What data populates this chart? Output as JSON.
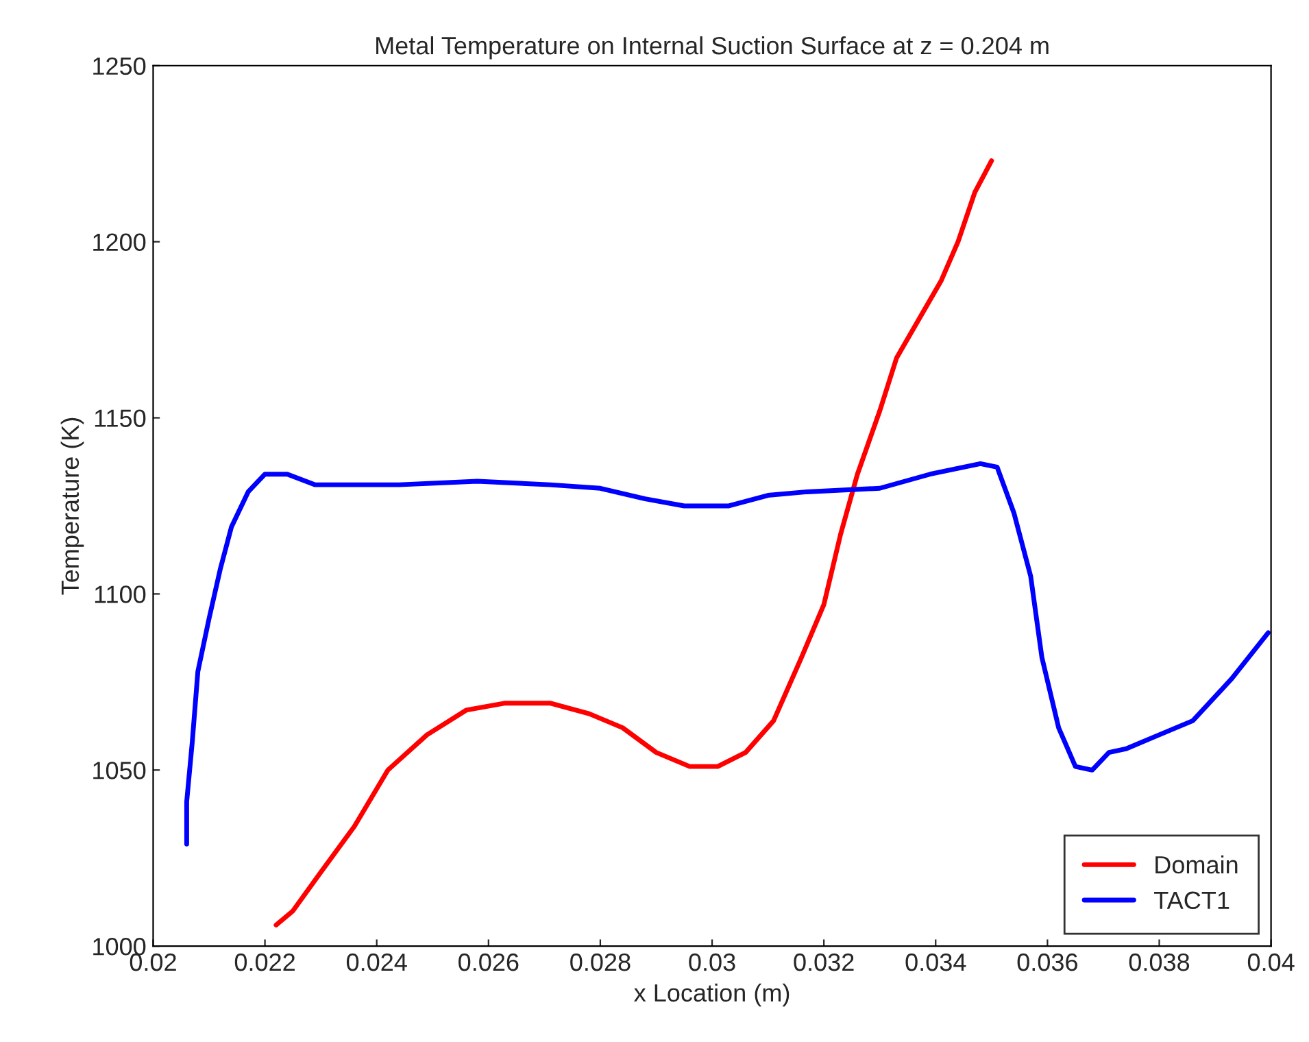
{
  "chart_data": {
    "type": "line",
    "title": "Metal Temperature on Internal Suction Surface at z = 0.204 m",
    "xlabel": "x Location (m)",
    "ylabel": "Temperature (K)",
    "xlim": [
      0.02,
      0.04
    ],
    "xticks": [
      0.02,
      0.022,
      0.024,
      0.026,
      0.028,
      0.03,
      0.032,
      0.034,
      0.036,
      0.038,
      0.04
    ],
    "ylim": [
      1000,
      1250
    ],
    "yticks": [
      1000,
      1050,
      1100,
      1150,
      1200,
      1250
    ],
    "grid": false,
    "legend": "bottom right",
    "line_style": "solid",
    "marker": "none",
    "series": [
      {
        "name": "Domain",
        "color": "#ff0000",
        "x": [
          0.0222,
          0.0225,
          0.023,
          0.0236,
          0.0242,
          0.0249,
          0.0256,
          0.0263,
          0.0271,
          0.0278,
          0.0284,
          0.029,
          0.0296,
          0.0301,
          0.0306,
          0.0311,
          0.0316,
          0.032,
          0.0323,
          0.0326,
          0.033,
          0.0333,
          0.0337,
          0.0341,
          0.0344,
          0.0347,
          0.035
        ],
        "values": [
          1006,
          1010,
          1021,
          1034,
          1050,
          1060,
          1067,
          1069,
          1069,
          1066,
          1062,
          1055,
          1051,
          1051,
          1055,
          1064,
          1082,
          1097,
          1117,
          1134,
          1152,
          1167,
          1178,
          1189,
          1200,
          1214,
          1223
        ]
      },
      {
        "name": "TACT1",
        "color": "#0000ff",
        "x": [
          0.0206,
          0.0206,
          0.0207,
          0.0208,
          0.021,
          0.0212,
          0.0214,
          0.0217,
          0.022,
          0.0224,
          0.0229,
          0.0244,
          0.0258,
          0.0271,
          0.028,
          0.0288,
          0.0295,
          0.0303,
          0.031,
          0.0317,
          0.033,
          0.0339,
          0.0348,
          0.0351,
          0.0354,
          0.0357,
          0.0359,
          0.0362,
          0.0365,
          0.0368,
          0.0371,
          0.0374,
          0.038,
          0.0386,
          0.0393,
          0.03995
        ],
        "values": [
          1029,
          1041,
          1058,
          1078,
          1093,
          1107,
          1119,
          1129,
          1134,
          1134,
          1131,
          1131,
          1132,
          1131,
          1130,
          1127,
          1125,
          1125,
          1128,
          1129,
          1130,
          1134,
          1137,
          1136,
          1123,
          1105,
          1082,
          1062,
          1051,
          1050,
          1055,
          1056,
          1060,
          1064,
          1076,
          1089
        ]
      }
    ]
  }
}
